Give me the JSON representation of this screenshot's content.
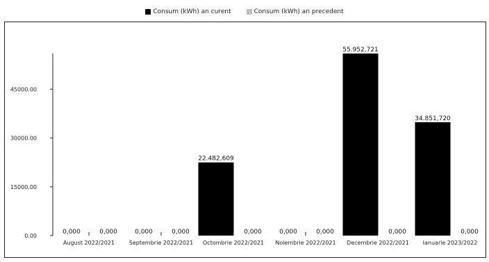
{
  "chart_data": {
    "type": "bar",
    "categories": [
      "August 2022/2021",
      "Septembrie 2022/2021",
      "Octombrie 2022/2021",
      "Noiembrie 2022/2021",
      "Decembrie 2022/2021",
      "Ianuarie 2023/2022"
    ],
    "series": [
      {
        "name": "Consum (kWh) an curent",
        "color": "#000000",
        "values": [
          0,
          0,
          22482.609,
          0,
          55952.721,
          34851.72
        ],
        "labels": [
          "0,000",
          "0,000",
          "22.482,609",
          "0,000",
          "55.952,721",
          "34.851,720"
        ]
      },
      {
        "name": "Consum (kWh) an precedent",
        "color": "#c0c0c0",
        "values": [
          0,
          0,
          0,
          0,
          0,
          0
        ],
        "labels": [
          "0,000",
          "0,000",
          "0,000",
          "0,000",
          "0,000",
          "0,000"
        ]
      }
    ],
    "yticks": [
      0,
      15000,
      30000,
      45000
    ],
    "ytick_labels": [
      "0.00",
      "15000.00",
      "30000.00",
      "45000.00"
    ],
    "ylim": [
      0,
      55952.721
    ],
    "legend_position": "top-center",
    "grid": false
  }
}
